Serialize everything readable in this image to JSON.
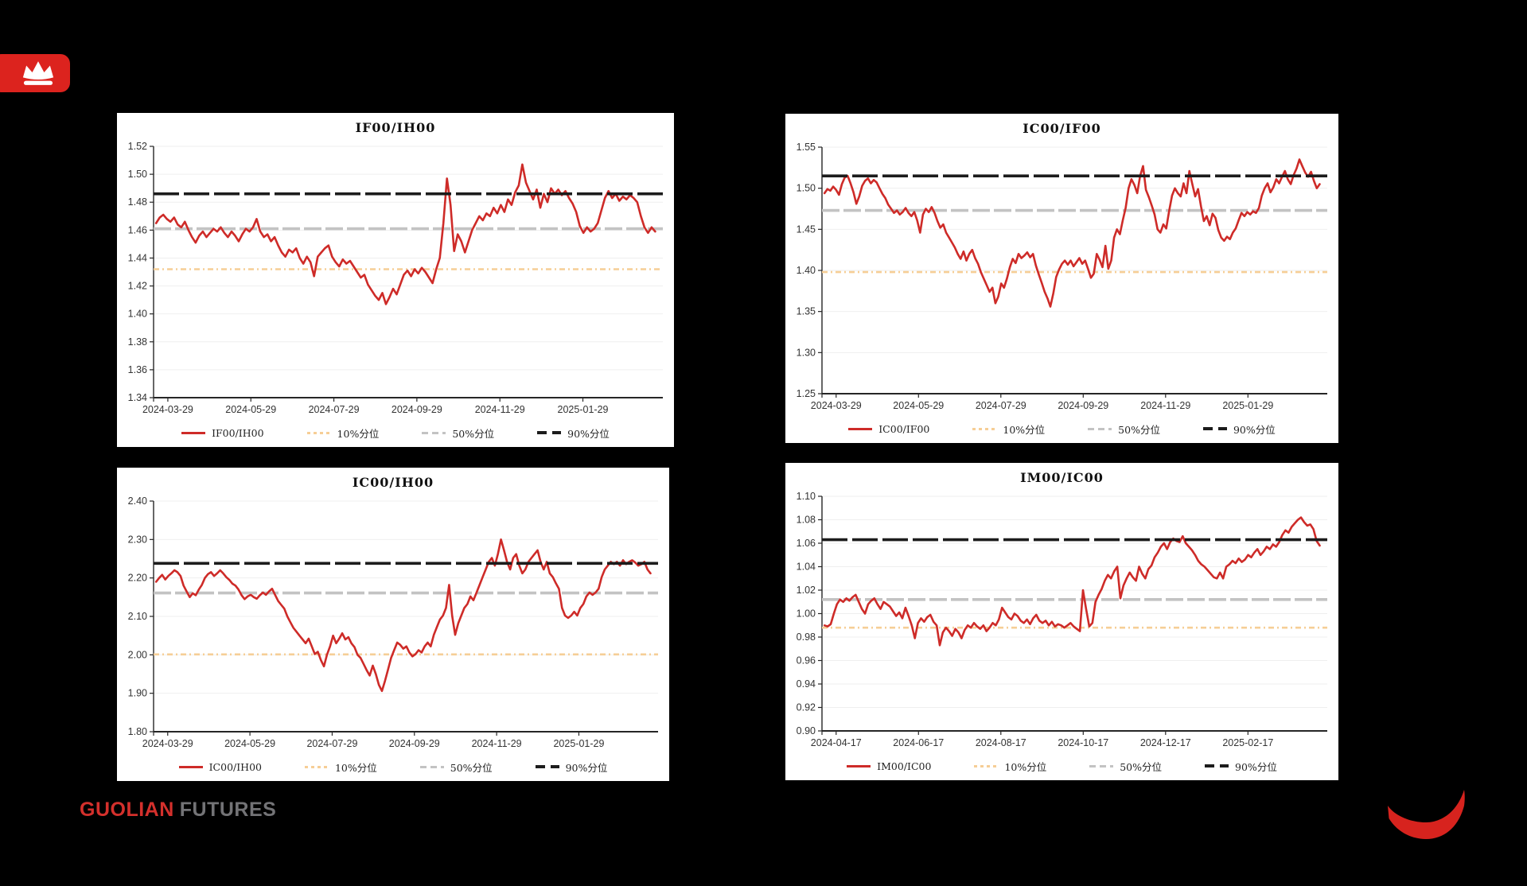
{
  "footer": {
    "brand_red": "GUOLIAN",
    "brand_gray": "FUTURES"
  },
  "colors": {
    "background": "#000000",
    "panel": "#FFFFFF",
    "series_red": "#CE2B28",
    "p10_orange": "#F6CE96",
    "p50_gray": "#C3C3C3",
    "p90_black": "#1C1C1C",
    "grid": "#EFEFEF",
    "axis": "#262626",
    "tick_label": "#333333",
    "brand_red": "#DC231E"
  },
  "chart_data": [
    {
      "type": "line",
      "title": "IF00/IH00",
      "y_min": 1.34,
      "y_max": 1.52,
      "y_step": 0.02,
      "x_labels": [
        "2024-03-29",
        "2024-05-29",
        "2024-07-29",
        "2024-09-29",
        "2024-11-29",
        "2025-01-29"
      ],
      "percentiles": {
        "p10": 1.432,
        "p50": 1.461,
        "p90": 1.486
      },
      "legend": [
        {
          "label": "IF00/IH00",
          "style": "series"
        },
        {
          "label": "10%分位",
          "style": "p10"
        },
        {
          "label": "50%分位",
          "style": "p50"
        },
        {
          "label": "90%分位",
          "style": "p90"
        }
      ],
      "series": [
        1.465,
        1.469,
        1.471,
        1.468,
        1.466,
        1.469,
        1.464,
        1.462,
        1.466,
        1.46,
        1.455,
        1.451,
        1.456,
        1.459,
        1.455,
        1.458,
        1.461,
        1.459,
        1.462,
        1.458,
        1.455,
        1.459,
        1.456,
        1.452,
        1.457,
        1.461,
        1.459,
        1.462,
        1.468,
        1.459,
        1.455,
        1.457,
        1.452,
        1.455,
        1.449,
        1.444,
        1.441,
        1.446,
        1.444,
        1.447,
        1.44,
        1.436,
        1.441,
        1.437,
        1.427,
        1.441,
        1.444,
        1.447,
        1.449,
        1.441,
        1.437,
        1.434,
        1.439,
        1.436,
        1.438,
        1.434,
        1.43,
        1.426,
        1.428,
        1.421,
        1.417,
        1.413,
        1.41,
        1.415,
        1.407,
        1.412,
        1.418,
        1.414,
        1.421,
        1.428,
        1.431,
        1.427,
        1.432,
        1.429,
        1.433,
        1.43,
        1.426,
        1.422,
        1.432,
        1.44,
        1.465,
        1.497,
        1.478,
        1.445,
        1.457,
        1.452,
        1.444,
        1.452,
        1.46,
        1.465,
        1.47,
        1.467,
        1.472,
        1.47,
        1.476,
        1.472,
        1.478,
        1.473,
        1.482,
        1.478,
        1.487,
        1.492,
        1.507,
        1.494,
        1.488,
        1.482,
        1.489,
        1.476,
        1.486,
        1.48,
        1.49,
        1.486,
        1.489,
        1.485,
        1.488,
        1.483,
        1.479,
        1.473,
        1.463,
        1.458,
        1.462,
        1.459,
        1.461,
        1.465,
        1.474,
        1.483,
        1.488,
        1.483,
        1.486,
        1.481,
        1.484,
        1.482,
        1.485,
        1.483,
        1.48,
        1.47,
        1.462,
        1.458,
        1.462,
        1.459
      ]
    },
    {
      "type": "line",
      "title": "IC00/IF00",
      "y_min": 1.25,
      "y_max": 1.55,
      "y_step": 0.05,
      "x_labels": [
        "2024-03-29",
        "2024-05-29",
        "2024-07-29",
        "2024-09-29",
        "2024-11-29",
        "2025-01-29"
      ],
      "percentiles": {
        "p10": 1.398,
        "p50": 1.473,
        "p90": 1.515
      },
      "legend": [
        {
          "label": "IC00/IF00",
          "style": "series"
        },
        {
          "label": "10%分位",
          "style": "p10"
        },
        {
          "label": "50%分位",
          "style": "p50"
        },
        {
          "label": "90%分位",
          "style": "p90"
        }
      ],
      "series": [
        1.494,
        1.499,
        1.497,
        1.502,
        1.498,
        1.492,
        1.505,
        1.513,
        1.515,
        1.506,
        1.495,
        1.481,
        1.49,
        1.503,
        1.509,
        1.512,
        1.506,
        1.51,
        1.507,
        1.5,
        1.493,
        1.488,
        1.48,
        1.475,
        1.47,
        1.473,
        1.468,
        1.471,
        1.476,
        1.47,
        1.466,
        1.471,
        1.461,
        1.446,
        1.468,
        1.475,
        1.471,
        1.477,
        1.47,
        1.46,
        1.452,
        1.456,
        1.446,
        1.44,
        1.434,
        1.428,
        1.42,
        1.414,
        1.423,
        1.412,
        1.42,
        1.425,
        1.415,
        1.408,
        1.398,
        1.39,
        1.382,
        1.374,
        1.379,
        1.36,
        1.368,
        1.384,
        1.379,
        1.39,
        1.404,
        1.414,
        1.409,
        1.42,
        1.415,
        1.418,
        1.422,
        1.416,
        1.42,
        1.406,
        1.395,
        1.385,
        1.374,
        1.366,
        1.356,
        1.372,
        1.392,
        1.401,
        1.408,
        1.412,
        1.407,
        1.412,
        1.405,
        1.41,
        1.415,
        1.408,
        1.412,
        1.402,
        1.391,
        1.396,
        1.42,
        1.413,
        1.404,
        1.43,
        1.402,
        1.412,
        1.44,
        1.45,
        1.444,
        1.461,
        1.476,
        1.5,
        1.511,
        1.504,
        1.494,
        1.515,
        1.527,
        1.498,
        1.489,
        1.479,
        1.468,
        1.45,
        1.446,
        1.456,
        1.451,
        1.472,
        1.491,
        1.5,
        1.494,
        1.49,
        1.506,
        1.494,
        1.521,
        1.505,
        1.49,
        1.499,
        1.478,
        1.46,
        1.466,
        1.455,
        1.469,
        1.464,
        1.449,
        1.44,
        1.436,
        1.441,
        1.438,
        1.446,
        1.451,
        1.461,
        1.47,
        1.466,
        1.471,
        1.468,
        1.472,
        1.47,
        1.476,
        1.491,
        1.5,
        1.506,
        1.495,
        1.501,
        1.511,
        1.506,
        1.514,
        1.521,
        1.511,
        1.505,
        1.516,
        1.524,
        1.535,
        1.527,
        1.519,
        1.514,
        1.52,
        1.509,
        1.5,
        1.505
      ]
    },
    {
      "type": "line",
      "title": "IC00/IH00",
      "y_min": 1.8,
      "y_max": 2.4,
      "y_step": 0.1,
      "x_labels": [
        "2024-03-29",
        "2024-05-29",
        "2024-07-29",
        "2024-09-29",
        "2024-11-29",
        "2025-01-29"
      ],
      "percentiles": {
        "p10": 2.001,
        "p50": 2.161,
        "p90": 2.238
      },
      "legend": [
        {
          "label": "IC00/IH00",
          "style": "series"
        },
        {
          "label": "10%分位",
          "style": "p10"
        },
        {
          "label": "50%分位",
          "style": "p50"
        },
        {
          "label": "90%分位",
          "style": "p90"
        }
      ],
      "series": [
        2.19,
        2.2,
        2.208,
        2.196,
        2.205,
        2.212,
        2.22,
        2.215,
        2.205,
        2.18,
        2.165,
        2.15,
        2.16,
        2.155,
        2.17,
        2.182,
        2.2,
        2.21,
        2.215,
        2.205,
        2.212,
        2.22,
        2.212,
        2.202,
        2.195,
        2.185,
        2.18,
        2.17,
        2.155,
        2.145,
        2.152,
        2.156,
        2.15,
        2.146,
        2.155,
        2.162,
        2.156,
        2.165,
        2.172,
        2.156,
        2.14,
        2.13,
        2.12,
        2.1,
        2.085,
        2.07,
        2.06,
        2.05,
        2.04,
        2.03,
        2.042,
        2.022,
        2.002,
        2.008,
        1.986,
        1.97,
        2.0,
        2.022,
        2.05,
        2.03,
        2.042,
        2.056,
        2.04,
        2.046,
        2.03,
        2.02,
        2.0,
        1.992,
        1.976,
        1.96,
        1.946,
        1.972,
        1.95,
        1.922,
        1.906,
        1.932,
        1.962,
        1.992,
        2.012,
        2.032,
        2.026,
        2.016,
        2.022,
        2.006,
        1.996,
        2.002,
        2.012,
        2.006,
        2.022,
        2.032,
        2.022,
        2.052,
        2.072,
        2.092,
        2.102,
        2.122,
        2.182,
        2.102,
        2.052,
        2.082,
        2.102,
        2.122,
        2.132,
        2.152,
        2.142,
        2.162,
        2.182,
        2.202,
        2.222,
        2.242,
        2.252,
        2.232,
        2.262,
        2.3,
        2.272,
        2.242,
        2.222,
        2.252,
        2.262,
        2.232,
        2.212,
        2.222,
        2.242,
        2.252,
        2.262,
        2.272,
        2.242,
        2.222,
        2.242,
        2.212,
        2.202,
        2.186,
        2.172,
        2.122,
        2.102,
        2.096,
        2.102,
        2.112,
        2.102,
        2.122,
        2.132,
        2.152,
        2.162,
        2.156,
        2.162,
        2.172,
        2.202,
        2.222,
        2.232,
        2.242,
        2.236,
        2.242,
        2.232,
        2.246,
        2.236,
        2.242,
        2.246,
        2.24,
        2.232,
        2.236,
        2.242,
        2.222,
        2.212
      ]
    },
    {
      "type": "line",
      "title": "IM00/IC00",
      "y_min": 0.9,
      "y_max": 1.1,
      "y_step": 0.02,
      "x_labels": [
        "2024-04-17",
        "2024-06-17",
        "2024-08-17",
        "2024-10-17",
        "2024-12-17",
        "2025-02-17"
      ],
      "percentiles": {
        "p10": 0.988,
        "p50": 1.012,
        "p90": 1.063
      },
      "legend": [
        {
          "label": "IM00/IC00",
          "style": "series"
        },
        {
          "label": "10%分位",
          "style": "p10"
        },
        {
          "label": "50%分位",
          "style": "p50"
        },
        {
          "label": "90%分位",
          "style": "p90"
        }
      ],
      "series": [
        0.99,
        0.989,
        0.991,
        1.0,
        1.008,
        1.012,
        1.01,
        1.013,
        1.011,
        1.014,
        1.016,
        1.01,
        1.004,
        1.0,
        1.008,
        1.011,
        1.013,
        1.008,
        1.004,
        1.01,
        1.008,
        1.006,
        1.002,
        0.998,
        1.001,
        0.996,
        1.005,
        0.998,
        0.99,
        0.979,
        0.992,
        0.996,
        0.993,
        0.997,
        0.999,
        0.993,
        0.99,
        0.973,
        0.984,
        0.988,
        0.985,
        0.981,
        0.987,
        0.984,
        0.979,
        0.986,
        0.99,
        0.988,
        0.992,
        0.989,
        0.987,
        0.99,
        0.985,
        0.988,
        0.992,
        0.99,
        0.995,
        1.005,
        1.001,
        0.997,
        0.995,
        1.0,
        0.998,
        0.994,
        0.992,
        0.995,
        0.991,
        0.996,
        0.999,
        0.994,
        0.992,
        0.994,
        0.99,
        0.993,
        0.989,
        0.991,
        0.99,
        0.988,
        0.99,
        0.992,
        0.989,
        0.987,
        0.985,
        1.02,
        1.004,
        0.989,
        0.992,
        1.01,
        1.016,
        1.021,
        1.028,
        1.033,
        1.03,
        1.036,
        1.04,
        1.013,
        1.024,
        1.03,
        1.035,
        1.031,
        1.028,
        1.04,
        1.034,
        1.03,
        1.038,
        1.041,
        1.048,
        1.052,
        1.057,
        1.06,
        1.055,
        1.061,
        1.064,
        1.062,
        1.061,
        1.066,
        1.06,
        1.057,
        1.054,
        1.05,
        1.045,
        1.042,
        1.04,
        1.037,
        1.034,
        1.031,
        1.03,
        1.035,
        1.03,
        1.04,
        1.042,
        1.045,
        1.043,
        1.047,
        1.044,
        1.046,
        1.05,
        1.048,
        1.052,
        1.055,
        1.05,
        1.053,
        1.057,
        1.055,
        1.059,
        1.057,
        1.061,
        1.067,
        1.071,
        1.069,
        1.074,
        1.077,
        1.08,
        1.082,
        1.078,
        1.075,
        1.076,
        1.072,
        1.062,
        1.058
      ]
    }
  ]
}
